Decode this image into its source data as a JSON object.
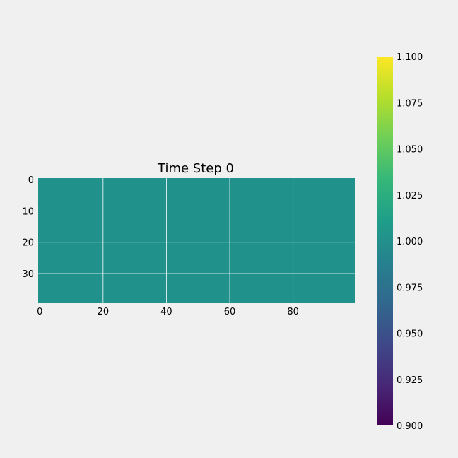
{
  "chart_data": {
    "type": "heatmap",
    "title": "Time Step 0",
    "xlabel": "",
    "ylabel": "",
    "grid": true,
    "rows": 40,
    "cols": 100,
    "fill_value": 1.0,
    "fill_color": "#21918c",
    "xlim": [
      -0.5,
      99.5
    ],
    "ylim": [
      39.5,
      -0.5
    ],
    "x_ticks": [
      0,
      20,
      40,
      60,
      80
    ],
    "y_ticks": [
      0,
      10,
      20,
      30
    ],
    "colorbar": {
      "colormap": "viridis",
      "vmin": 0.9,
      "vmax": 1.1,
      "placement": "right",
      "ticks": [
        "0.900",
        "0.925",
        "0.950",
        "0.975",
        "1.000",
        "1.025",
        "1.050",
        "1.075",
        "1.100"
      ],
      "stops": [
        "#440154",
        "#482878",
        "#3e4989",
        "#31688e",
        "#26828e",
        "#1f9e89",
        "#35b779",
        "#6ece58",
        "#b5de2b",
        "#fde725"
      ]
    }
  },
  "colors": {
    "background": "#f0f0f0",
    "grid": "#ffffff"
  }
}
